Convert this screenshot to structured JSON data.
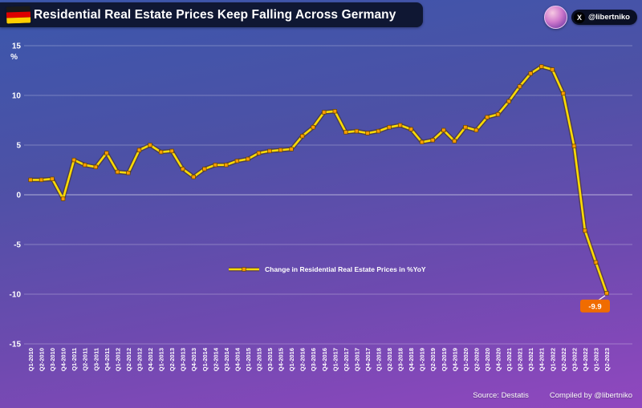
{
  "header": {
    "title": "Residential Real Estate Prices Keep Falling Across Germany",
    "handle": "@libertniko",
    "x_logo_glyph": "X"
  },
  "footer": {
    "source": "Source: Destatis",
    "compiled": "Compiled by @libertniko"
  },
  "icons": {
    "flag": "germany-flag",
    "x_logo": "x-social-logo"
  },
  "colors": {
    "bg_top": "#3b57ac",
    "bg_bottom": "#9147bf",
    "title_bar": "#0f1733",
    "line": "#ffdc00",
    "line_shadow": "rgba(70,45,0,0.5)",
    "marker": "#ff9d00",
    "marker_edge": "#6e4a00",
    "grid": "rgba(255,255,255,0.28)",
    "grid_zero": "rgba(255,255,255,0.55)",
    "annotation_bg": "#f06c00",
    "flag_black": "#1a1a1a",
    "flag_red": "#dd0000",
    "flag_gold": "#ffce00"
  },
  "chart_data": {
    "type": "line",
    "title": "Residential Real Estate Prices Keep Falling Across Germany",
    "legend": "Change in Residential Real Estate Prices in %YoY",
    "ylabel": "%",
    "ylim": [
      -15,
      15
    ],
    "yticks": [
      15,
      10,
      5,
      0,
      -5,
      -10,
      -15
    ],
    "grid": true,
    "categories": [
      "Q1-2010",
      "Q2-2010",
      "Q3-2010",
      "Q4-2010",
      "Q1-2011",
      "Q2-2011",
      "Q3-2011",
      "Q4-2011",
      "Q1-2012",
      "Q2-2012",
      "Q3-2012",
      "Q4-2012",
      "Q1-2013",
      "Q2-2013",
      "Q3-2013",
      "Q4-2013",
      "Q1-2014",
      "Q2-2014",
      "Q3-2014",
      "Q4-2014",
      "Q1-2015",
      "Q2-2015",
      "Q3-2015",
      "Q4-2015",
      "Q1-2016",
      "Q2-2016",
      "Q3-2016",
      "Q4-2016",
      "Q1-2017",
      "Q2-2017",
      "Q3-2017",
      "Q4-2017",
      "Q1-2018",
      "Q2-2018",
      "Q3-2018",
      "Q4-2018",
      "Q1-2019",
      "Q2-2019",
      "Q3-2019",
      "Q4-2019",
      "Q1-2020",
      "Q2-2020",
      "Q3-2020",
      "Q4-2020",
      "Q1-2021",
      "Q2-2021",
      "Q3-2021",
      "Q4-2021",
      "Q1-2022",
      "Q2-2022",
      "Q3-2022",
      "Q4-2022",
      "Q1-2023",
      "Q2-2023"
    ],
    "values": [
      1.5,
      1.5,
      1.6,
      -0.4,
      3.5,
      3.0,
      2.8,
      4.2,
      2.3,
      2.2,
      4.5,
      5.0,
      4.3,
      4.4,
      2.6,
      1.8,
      2.6,
      3.0,
      3.0,
      3.4,
      3.6,
      4.2,
      4.4,
      4.5,
      4.6,
      5.9,
      6.8,
      8.3,
      8.4,
      6.3,
      6.4,
      6.2,
      6.4,
      6.8,
      7.0,
      6.6,
      5.3,
      5.5,
      6.5,
      5.4,
      6.8,
      6.5,
      7.8,
      8.1,
      9.4,
      10.9,
      12.2,
      12.9,
      12.6,
      10.2,
      4.9,
      -3.6,
      -6.8,
      -9.9
    ],
    "annotation": {
      "label": "-9.9",
      "category": "Q2-2023",
      "value": -9.9
    }
  }
}
